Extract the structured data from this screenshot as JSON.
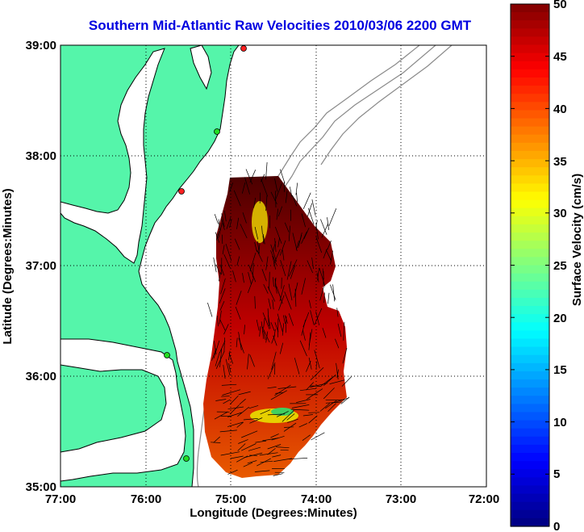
{
  "title": "Southern Mid-Atlantic Raw Velocities 2010/03/06 2200 GMT",
  "xlabel": "Longitude (Degrees:Minutes)",
  "ylabel": "Latitude (Degrees:Minutes)",
  "colorbar_label": "Surface Velocity (cm/s)",
  "x_ticks": [
    "77:00",
    "76:00",
    "75:00",
    "74:00",
    "73:00",
    "72:00"
  ],
  "y_ticks": [
    "39:00",
    "38:00",
    "37:00",
    "36:00",
    "35:00"
  ],
  "colorbar_ticks": [
    "50",
    "45",
    "40",
    "35",
    "30",
    "25",
    "20",
    "15",
    "10",
    "5",
    "0"
  ],
  "colors": {
    "land": "#55f5aa",
    "title": "#0000e0",
    "coast": "#000000",
    "bathymetry": "#8a8a8a"
  },
  "chart_data": {
    "type": "map",
    "xlim": [
      -77,
      -72
    ],
    "ylim": [
      35,
      39
    ],
    "colorbar_range": [
      0,
      50
    ],
    "colormap": "jet",
    "grid": true,
    "grid_style": "dotted",
    "station_markers": [
      {
        "lon": -75.15,
        "lat": 38.98,
        "color": "#ff2020"
      },
      {
        "lon": -75.08,
        "lat": 38.22,
        "color": "#22dd22"
      },
      {
        "lon": -75.52,
        "lat": 37.67,
        "color": "#ff2020"
      },
      {
        "lon": -75.57,
        "lat": 36.18,
        "color": "#22dd22"
      },
      {
        "lon": -75.47,
        "lat": 35.25,
        "color": "#22dd22"
      }
    ]
  }
}
